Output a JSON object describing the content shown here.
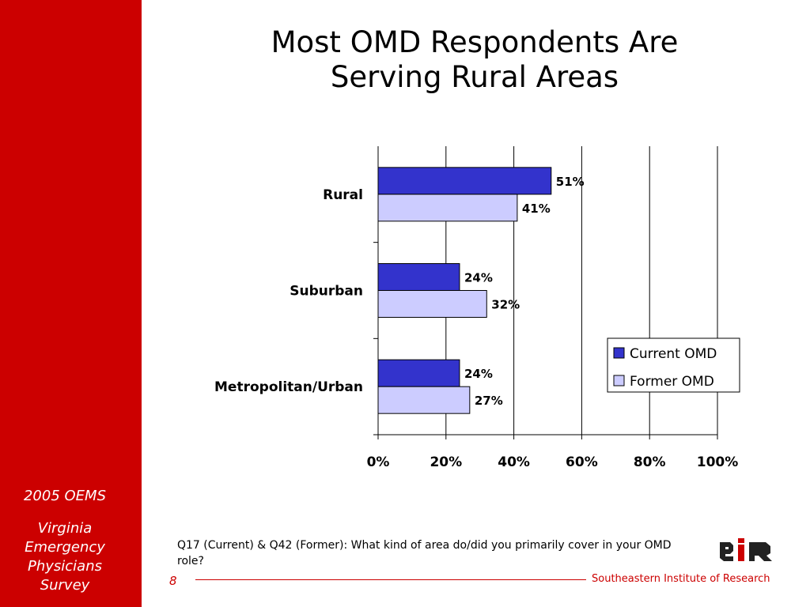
{
  "sidebar": {
    "year_label": "2005 OEMS",
    "survey_lines": [
      "Virginia",
      "Emergency",
      "Physicians",
      "Survey"
    ]
  },
  "slide": {
    "title_lines": [
      "Most OMD Respondents Are",
      "Serving Rural Areas"
    ],
    "question": "Q17 (Current) & Q42 (Former): What kind of area do/did you primarily cover in your OMD role?",
    "page_number": "8",
    "organization": "Southeastern Institute of Research"
  },
  "colors": {
    "brand_red": "#cc0000",
    "current_omd": "#3333cc",
    "former_omd": "#ccccff"
  },
  "chart_data": {
    "type": "bar",
    "orientation": "horizontal",
    "categories": [
      "Rural",
      "Suburban",
      "Metropolitan/Urban"
    ],
    "series": [
      {
        "name": "Current OMD",
        "values": [
          51,
          24,
          24
        ],
        "labels": [
          "51%",
          "24%",
          "24%"
        ]
      },
      {
        "name": "Former OMD",
        "values": [
          41,
          32,
          27
        ],
        "labels": [
          "41%",
          "32%",
          "27%"
        ]
      }
    ],
    "xlim": [
      0,
      100
    ],
    "x_ticks": [
      0,
      20,
      40,
      60,
      80,
      100
    ],
    "x_tick_labels": [
      "0%",
      "20%",
      "40%",
      "60%",
      "80%",
      "100%"
    ],
    "grid": "vertical",
    "legend": "right"
  }
}
